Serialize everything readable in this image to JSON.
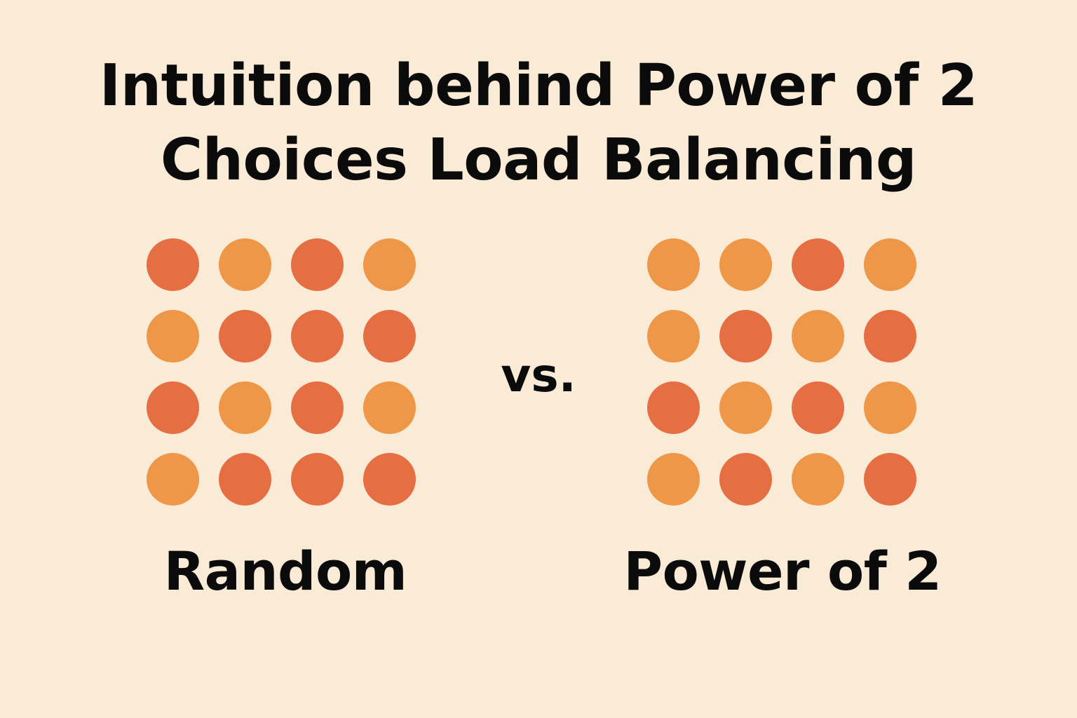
{
  "title": {
    "line1": "Intuition behind Power of 2",
    "line2": "Choices Load Balancing"
  },
  "separator": "vs.",
  "colors": {
    "background": "#FAEBD7",
    "dark": "#E56E42",
    "light": "#EF9748",
    "text": "#0B0B0B"
  },
  "panels": [
    {
      "label": "Random",
      "rows": [
        [
          "dark",
          "light",
          "dark",
          "light"
        ],
        [
          "light",
          "dark",
          "dark",
          "dark"
        ],
        [
          "dark",
          "light",
          "dark",
          "light"
        ],
        [
          "light",
          "dark",
          "dark",
          "dark"
        ]
      ]
    },
    {
      "label": "Power of 2",
      "rows": [
        [
          "light",
          "light",
          "dark",
          "light"
        ],
        [
          "light",
          "dark",
          "light",
          "dark"
        ],
        [
          "dark",
          "light",
          "dark",
          "light"
        ],
        [
          "light",
          "dark",
          "light",
          "dark"
        ]
      ]
    }
  ]
}
